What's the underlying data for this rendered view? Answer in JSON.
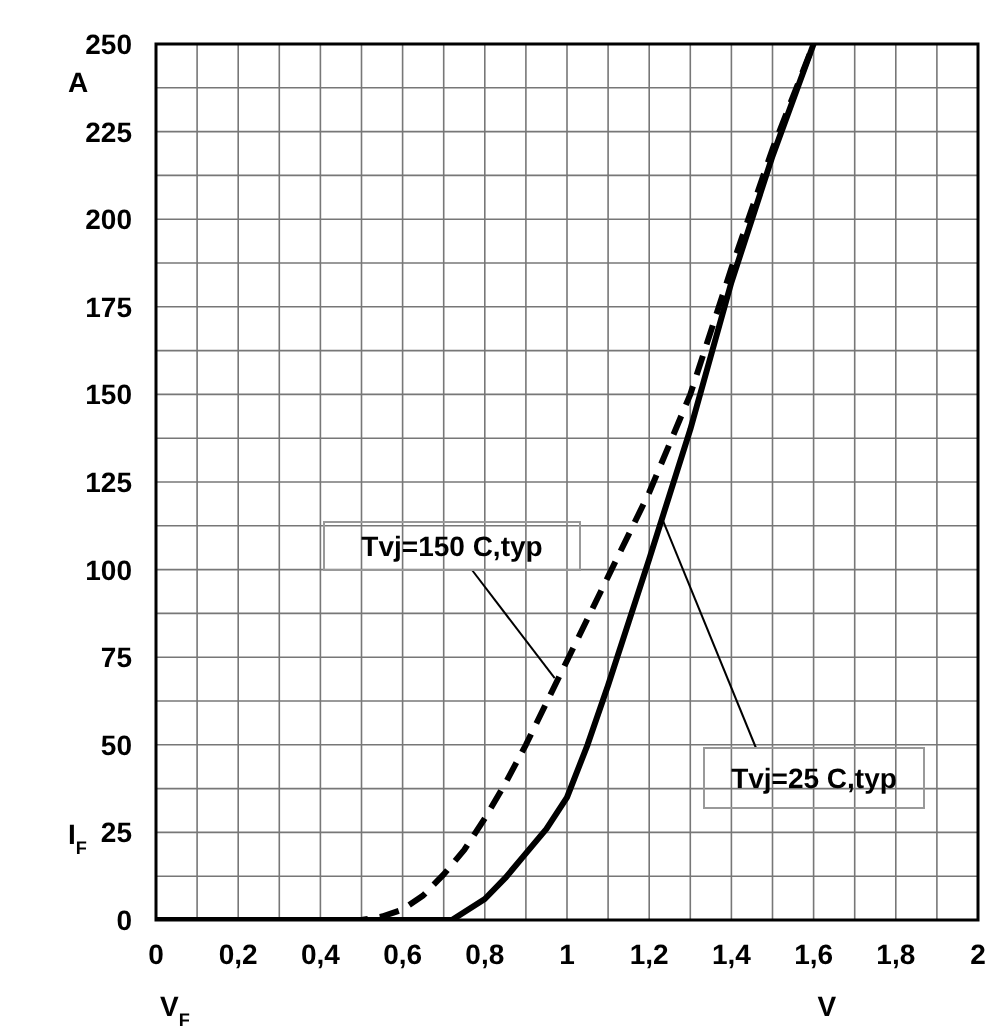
{
  "chart_data": {
    "type": "line",
    "ylabel": "I$_{F}$",
    "xlabel": "V$_{F}$",
    "annotations": [
      "A",
      "V",
      {
        "text": "Tvj=150 C,typ",
        "x": 0.97,
        "y": 69
      },
      {
        "text": "Tvj=25 C,typ",
        "x": 1.23,
        "y": 115
      }
    ],
    "xlim": [
      0,
      2
    ],
    "ylim": [
      0,
      250
    ],
    "xticks": [
      0,
      {
        "value": 0.2,
        "label": "0,2"
      },
      {
        "value": 0.4,
        "label": "0,4"
      },
      {
        "value": 0.6,
        "label": "0,6"
      },
      {
        "value": 0.8,
        "label": "0,8"
      },
      1,
      {
        "value": 1.2,
        "label": "1,2"
      },
      {
        "value": 1.4,
        "label": "1,4"
      },
      {
        "value": 1.6,
        "label": "1,6"
      },
      {
        "value": 1.8,
        "label": "1,8"
      },
      2
    ],
    "yticks": [
      0,
      25,
      50,
      75,
      100,
      125,
      150,
      175,
      200,
      225,
      250
    ],
    "grid": true,
    "series": [
      {
        "color": "#000000",
        "line_style": "dashed",
        "x": [
          0,
          0.5,
          0.55,
          0.6,
          0.65,
          0.7,
          0.75,
          0.8,
          0.85,
          0.9,
          0.95,
          1.0,
          1.05,
          1.1,
          1.15,
          1.2,
          1.3,
          1.4,
          1.5,
          1.6
        ],
        "values": [
          0,
          0,
          1,
          3,
          7,
          13,
          20,
          29,
          39,
          50,
          62,
          74,
          86,
          98,
          110,
          122,
          150,
          186,
          220,
          250
        ]
      },
      {
        "color": "#000000",
        "line_style": "solid",
        "x": [
          0,
          0.72,
          0.8,
          0.85,
          0.9,
          0.95,
          1.0,
          1.05,
          1.1,
          1.15,
          1.2,
          1.3,
          1.4,
          1.5,
          1.6
        ],
        "values": [
          0,
          0,
          6,
          12,
          19,
          26,
          35,
          50,
          67,
          85,
          103,
          140,
          182,
          218,
          250
        ]
      }
    ]
  }
}
